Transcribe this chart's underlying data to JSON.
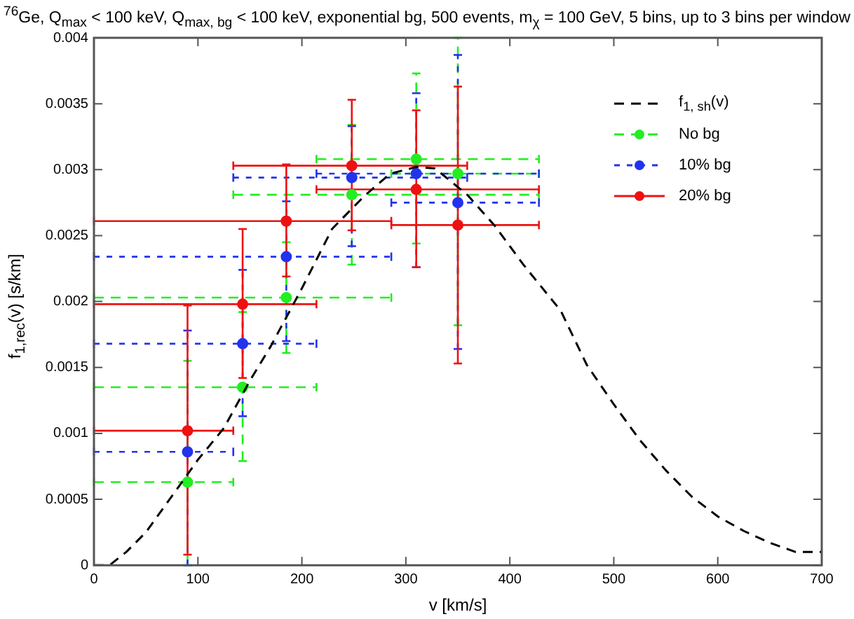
{
  "chart_data": {
    "type": "scatter",
    "title": "$^{76}$Ge, Q$_{max}$ < 100 keV, Q$_{max, bg}$ < 100 keV, exponential bg, 500 events, m$_{χ}$ = 100 GeV, 5 bins, up to 3 bins per window",
    "xlabel": "v [km/s]",
    "ylabel": "f$_{1,rec}$(v) [s/km]",
    "xlim": [
      0,
      700
    ],
    "xticks": [
      0,
      100,
      200,
      300,
      400,
      500,
      600,
      700
    ],
    "ylim": [
      0,
      0.004
    ],
    "yticks": [
      0,
      0.0005,
      0.001,
      0.0015,
      0.002,
      0.0025,
      0.003,
      0.0035,
      0.004
    ],
    "grid": false,
    "legend": "top right",
    "marker": "circle",
    "series": [
      {
        "name": "f$_{1, sh}$(v)",
        "type": "line",
        "color": "#000000",
        "line_style": "dashed",
        "marker": "none",
        "x": [
          0,
          15,
          31,
          50,
          81,
          100,
          125,
          150,
          170,
          200,
          229,
          260,
          285,
          310,
          328,
          345,
          359,
          386,
          413,
          449,
          474,
          500,
          525,
          550,
          575,
          600,
          625,
          650,
          675,
          700
        ],
        "values": [
          0,
          0,
          0.0001,
          0.00025,
          0.00059,
          0.0008,
          0.00104,
          0.0014,
          0.00166,
          0.0021,
          0.00255,
          0.0028,
          0.00297,
          0.00302,
          0.00301,
          0.0029,
          0.00281,
          0.00257,
          0.00228,
          0.00193,
          0.00152,
          0.00122,
          0.00095,
          0.00072,
          0.00052,
          0.00037,
          0.00026,
          0.00017,
          0.0001,
          0.0001
        ]
      },
      {
        "name": "No bg",
        "color": "#22ee22",
        "line_style": "dashed",
        "x": [
          90,
          143,
          185,
          248,
          310,
          350
        ],
        "values": [
          0.00063,
          0.00135,
          0.00203,
          0.00281,
          0.00308,
          0.00297
        ],
        "errors": [
          [
            0,
            0.00155
          ],
          [
            0.00079,
            0.00192
          ],
          [
            0.00161,
            0.00245
          ],
          [
            0.00228,
            0.00334
          ],
          [
            0.00244,
            0.00373
          ],
          [
            0.00182,
            0.004
          ]
        ],
        "xerrors": [
          [
            0,
            134
          ],
          [
            0,
            214
          ],
          [
            0,
            286
          ],
          [
            134,
            428
          ],
          [
            214,
            428
          ],
          [
            286,
            428
          ]
        ]
      },
      {
        "name": "10% bg",
        "color": "#2233ee",
        "line_style": "dotted",
        "x": [
          90,
          143,
          185,
          248,
          310,
          350
        ],
        "values": [
          0.00086,
          0.00168,
          0.00234,
          0.00294,
          0.00297,
          0.00275
        ],
        "errors": [
          [
            0,
            0.00178
          ],
          [
            0.00113,
            0.00224
          ],
          [
            0.0017,
            0.00276
          ],
          [
            0.00242,
            0.00333
          ],
          [
            0.00226,
            0.00358
          ],
          [
            0.00164,
            0.00387
          ]
        ],
        "xerrors": [
          [
            0,
            134
          ],
          [
            0,
            214
          ],
          [
            0,
            286
          ],
          [
            134,
            359
          ],
          [
            214,
            428
          ],
          [
            286,
            428
          ]
        ]
      },
      {
        "name": "20% bg",
        "color": "#ee1111",
        "line_style": "solid",
        "x": [
          90,
          143,
          185,
          248,
          310,
          350
        ],
        "values": [
          0.00102,
          0.00198,
          0.00261,
          0.00303,
          0.00285,
          0.00258
        ],
        "errors": [
          [
            8e-05,
            0.00197
          ],
          [
            0.00142,
            0.00255
          ],
          [
            0.00219,
            0.00304
          ],
          [
            0.00254,
            0.00353
          ],
          [
            0.00226,
            0.00345
          ],
          [
            0.00153,
            0.00363
          ]
        ],
        "xerrors": [
          [
            0,
            134
          ],
          [
            0,
            214
          ],
          [
            0,
            286
          ],
          [
            134,
            359
          ],
          [
            214,
            428
          ],
          [
            286,
            428
          ]
        ]
      }
    ]
  }
}
